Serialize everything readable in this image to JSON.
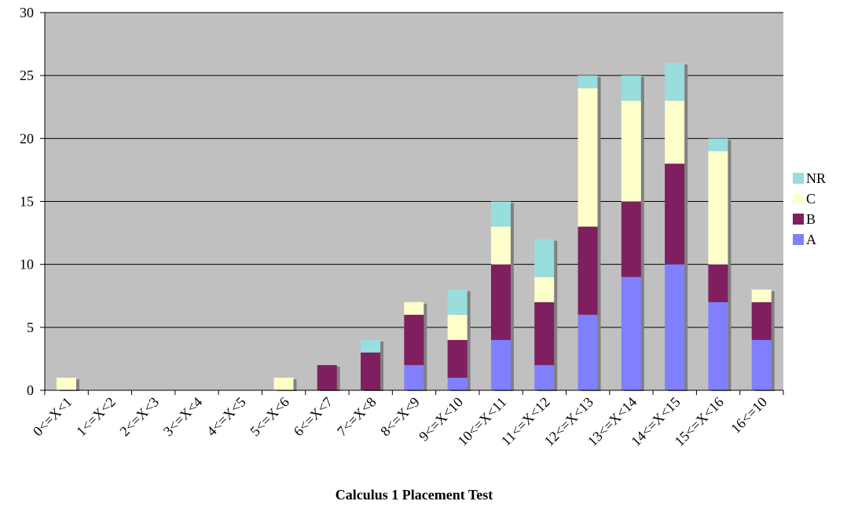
{
  "chart_data": {
    "type": "bar",
    "stacked": true,
    "title": "Calculus 1 Placement Test",
    "xlabel": "",
    "ylabel": "",
    "ylim": [
      0,
      30
    ],
    "yticks": [
      0,
      5,
      10,
      15,
      20,
      25,
      30
    ],
    "grid": true,
    "legend_position": "right",
    "categories": [
      "0<=X<1",
      "1<=X<2",
      "2<=X<3",
      "3<=X<4",
      "4<=X<5",
      "5<=X<6",
      "6<=X<7",
      "7<=X<8",
      "8<=X<9",
      "9<=X<10",
      "10<=X<11",
      "11<=X<12",
      "12<=X<13",
      "13<=X<14",
      "14<=X<15",
      "15<=X<16",
      "16<=10"
    ],
    "series": [
      {
        "name": "A",
        "color": "#8080ff",
        "values": [
          0,
          0,
          0,
          0,
          0,
          0,
          0,
          0,
          2,
          1,
          4,
          2,
          6,
          9,
          10,
          7,
          4
        ]
      },
      {
        "name": "B",
        "color": "#7f1f5f",
        "values": [
          0,
          0,
          0,
          0,
          0,
          0,
          2,
          3,
          4,
          3,
          6,
          5,
          7,
          6,
          8,
          3,
          3
        ]
      },
      {
        "name": "C",
        "color": "#ffffcc",
        "values": [
          1,
          0,
          0,
          0,
          0,
          1,
          0,
          0,
          1,
          2,
          3,
          2,
          11,
          8,
          5,
          9,
          1
        ]
      },
      {
        "name": "NR",
        "color": "#99dddd",
        "values": [
          0,
          0,
          0,
          0,
          0,
          0,
          0,
          1,
          0,
          2,
          2,
          3,
          1,
          2,
          3,
          1,
          0
        ]
      }
    ],
    "plot_background": "#c0c0c0",
    "gridline_color": "#000000"
  }
}
